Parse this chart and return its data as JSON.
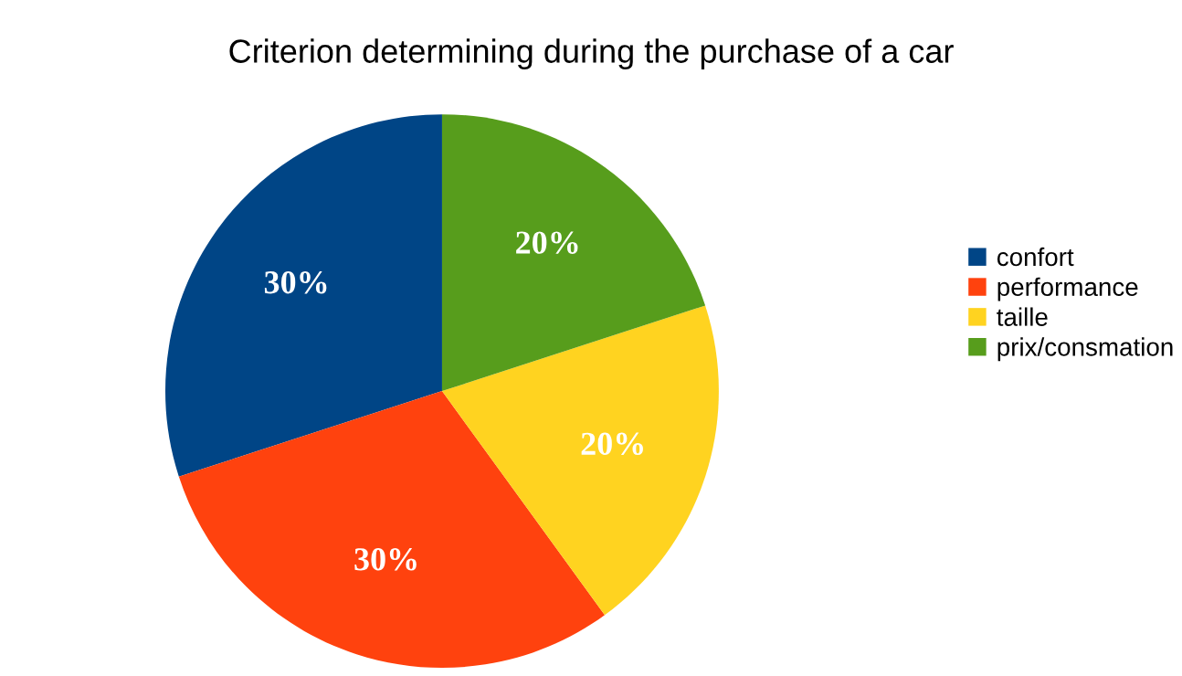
{
  "chart_data": {
    "type": "pie",
    "title": "Criterion determining during the purchase of a car",
    "categories": [
      "confort",
      "performance",
      "taille",
      "prix/consmation"
    ],
    "values": [
      30,
      30,
      20,
      20
    ],
    "value_labels": [
      "30%",
      "30%",
      "20%",
      "20%"
    ],
    "colors": [
      "#004586",
      "#ff420e",
      "#ffd320",
      "#579d1c"
    ],
    "legend": "right"
  }
}
